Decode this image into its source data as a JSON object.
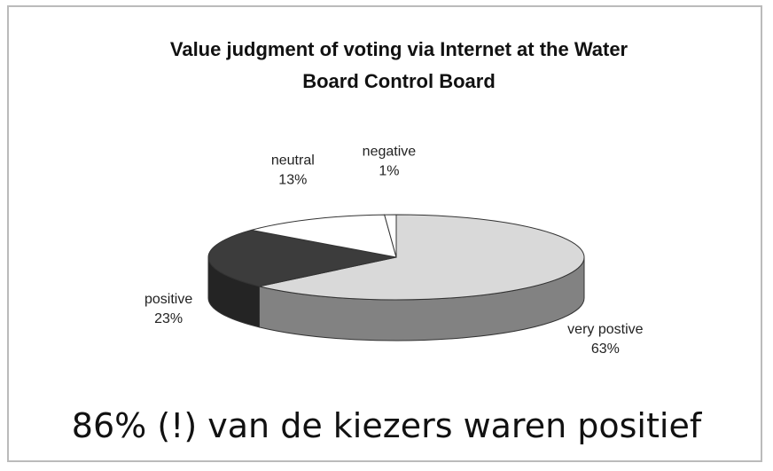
{
  "chart_data": {
    "type": "pie",
    "title": "Value judgment of voting via Internet at the Water Board Control Board",
    "categories": [
      "very postive",
      "positive",
      "neutral",
      "negative"
    ],
    "values": [
      63,
      23,
      13,
      1
    ],
    "value_labels": [
      "63%",
      "23%",
      "13%",
      "1%"
    ],
    "colors": [
      "#d9d9d9",
      "#3c3c3c",
      "#ffffff",
      "#ffffff"
    ],
    "annotation": "86% (!) van de kiezers waren positief"
  }
}
